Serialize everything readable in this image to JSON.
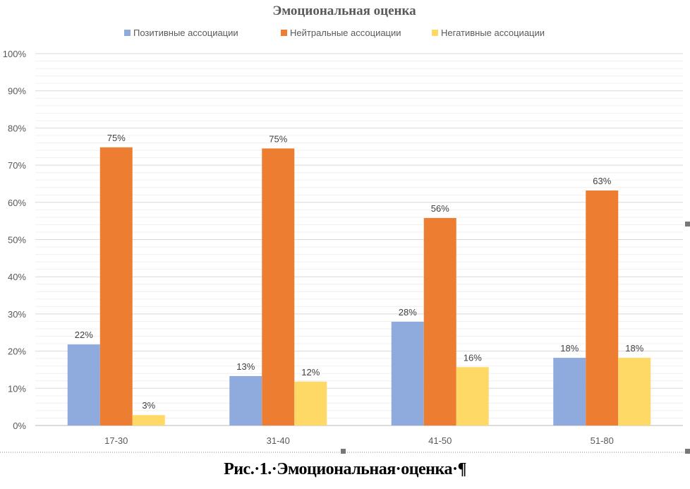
{
  "chart_data": {
    "type": "bar",
    "title": "Эмоциональная оценка",
    "xlabel": "",
    "ylabel": "",
    "ylim": [
      0,
      100
    ],
    "yticks": [
      "0%",
      "10%",
      "20%",
      "30%",
      "40%",
      "50%",
      "60%",
      "70%",
      "80%",
      "90%",
      "100%"
    ],
    "grid": true,
    "legend_position": "top",
    "categories": [
      "17-30",
      "31-40",
      "41-50",
      "51-80"
    ],
    "series": [
      {
        "name": "Позитивные ассоциации",
        "color": "#8FAADC",
        "values": [
          21.8,
          13.3,
          27.9,
          18.2
        ],
        "labels": [
          "22%",
          "13%",
          "28%",
          "18%"
        ]
      },
      {
        "name": "Нейтральные ассоциации",
        "color": "#ED7D31",
        "values": [
          74.8,
          74.5,
          55.8,
          63.2
        ],
        "labels": [
          "75%",
          "75%",
          "56%",
          "63%"
        ]
      },
      {
        "name": "Негативные ассоциации",
        "color": "#FFD966",
        "values": [
          2.8,
          11.8,
          15.7,
          18.2
        ],
        "labels": [
          "3%",
          "12%",
          "16%",
          "18%"
        ]
      }
    ]
  },
  "caption": "Рис.·1.·Эмоциональная·оценка·¶"
}
